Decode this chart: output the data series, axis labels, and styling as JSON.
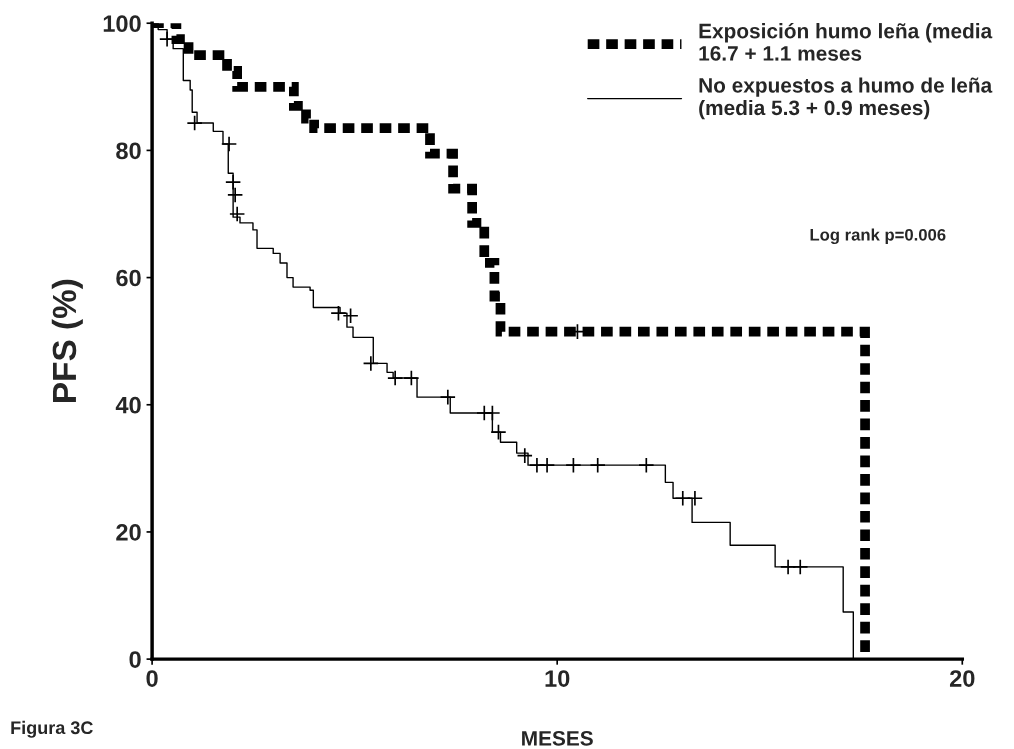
{
  "chart_data": {
    "type": "step",
    "xlabel": "MESES",
    "ylabel": "PFS (%)",
    "xlim": [
      0,
      20
    ],
    "xticks": [
      0,
      10,
      20
    ],
    "ylim": [
      0,
      100
    ],
    "yticks": [
      0,
      20,
      40,
      60,
      80,
      100
    ],
    "grid": false,
    "legend": "top right",
    "series": [
      {
        "name": "Exposición humo leña (media\n16.7 + 1.1 meses",
        "color": "#000000",
        "line_style": "dashed",
        "x": [
          0,
          0.6,
          0.9,
          1.85,
          2.1,
          3.5,
          3.8,
          4.0,
          6.86,
          7.43,
          7.9,
          8.2,
          8.45,
          8.6,
          17.6
        ],
        "values": [
          100,
          97.5,
          95,
          92.5,
          90,
          87,
          85,
          83.5,
          79.5,
          74,
          68.6,
          62.3,
          57,
          51.5,
          0
        ]
      },
      {
        "name": "No expuestos a humo de leña\n(media 5.3 + 0.9 meses)",
        "color": "#000000",
        "line_style": "solid",
        "x": [
          0,
          0.15,
          0.37,
          0.52,
          0.77,
          0.94,
          0.99,
          1.11,
          1.51,
          1.75,
          1.88,
          2.0,
          2.17,
          2.49,
          2.59,
          2.99,
          3.16,
          3.33,
          3.48,
          3.9,
          3.98,
          4.64,
          4.81,
          4.96,
          5.46,
          5.8,
          5.95,
          6.54,
          7.36,
          8.4,
          8.6,
          9.0,
          9.28,
          12.67,
          12.86,
          13.33,
          14.27,
          15.38,
          17.06,
          17.31
        ],
        "values": [
          100,
          99,
          97.5,
          96,
          91,
          89.5,
          86,
          84.3,
          83,
          81,
          76.4,
          69.5,
          68.6,
          67.5,
          64.6,
          63.8,
          62.3,
          60,
          58.5,
          58,
          55.3,
          54.4,
          52.2,
          50.6,
          46.5,
          45.1,
          44.2,
          41.2,
          38.7,
          35.7,
          34.1,
          32.4,
          30.5,
          27.8,
          25.3,
          21.5,
          17.9,
          14.5,
          7.4,
          0
        ]
      },
      {
        "type": "scatter",
        "marker": "cross",
        "color": "#000000",
        "x": [
          10.5
        ],
        "values": [
          51.5
        ]
      },
      {
        "type": "scatter",
        "marker": "cross",
        "color": "#000000",
        "x": [
          0.37,
          1.05,
          1.9,
          2.0,
          2.05,
          2.1,
          4.6,
          4.9,
          5.4,
          6.0,
          6.4,
          7.3,
          8.2,
          8.4,
          8.55,
          9.2,
          9.5,
          9.75,
          10.4,
          11.0,
          12.2,
          13.1,
          13.4,
          15.7,
          16.0
        ],
        "values": [
          97.5,
          84.3,
          81,
          75,
          73,
          70,
          54.4,
          54,
          46.5,
          44.2,
          44.2,
          41.2,
          38.7,
          38.7,
          35.7,
          32,
          30.5,
          30.5,
          30.5,
          30.5,
          30.5,
          25.3,
          25.3,
          14.5,
          14.5
        ]
      }
    ],
    "annotations": [
      "Log rank p=0.006",
      "Figura 3C"
    ]
  }
}
